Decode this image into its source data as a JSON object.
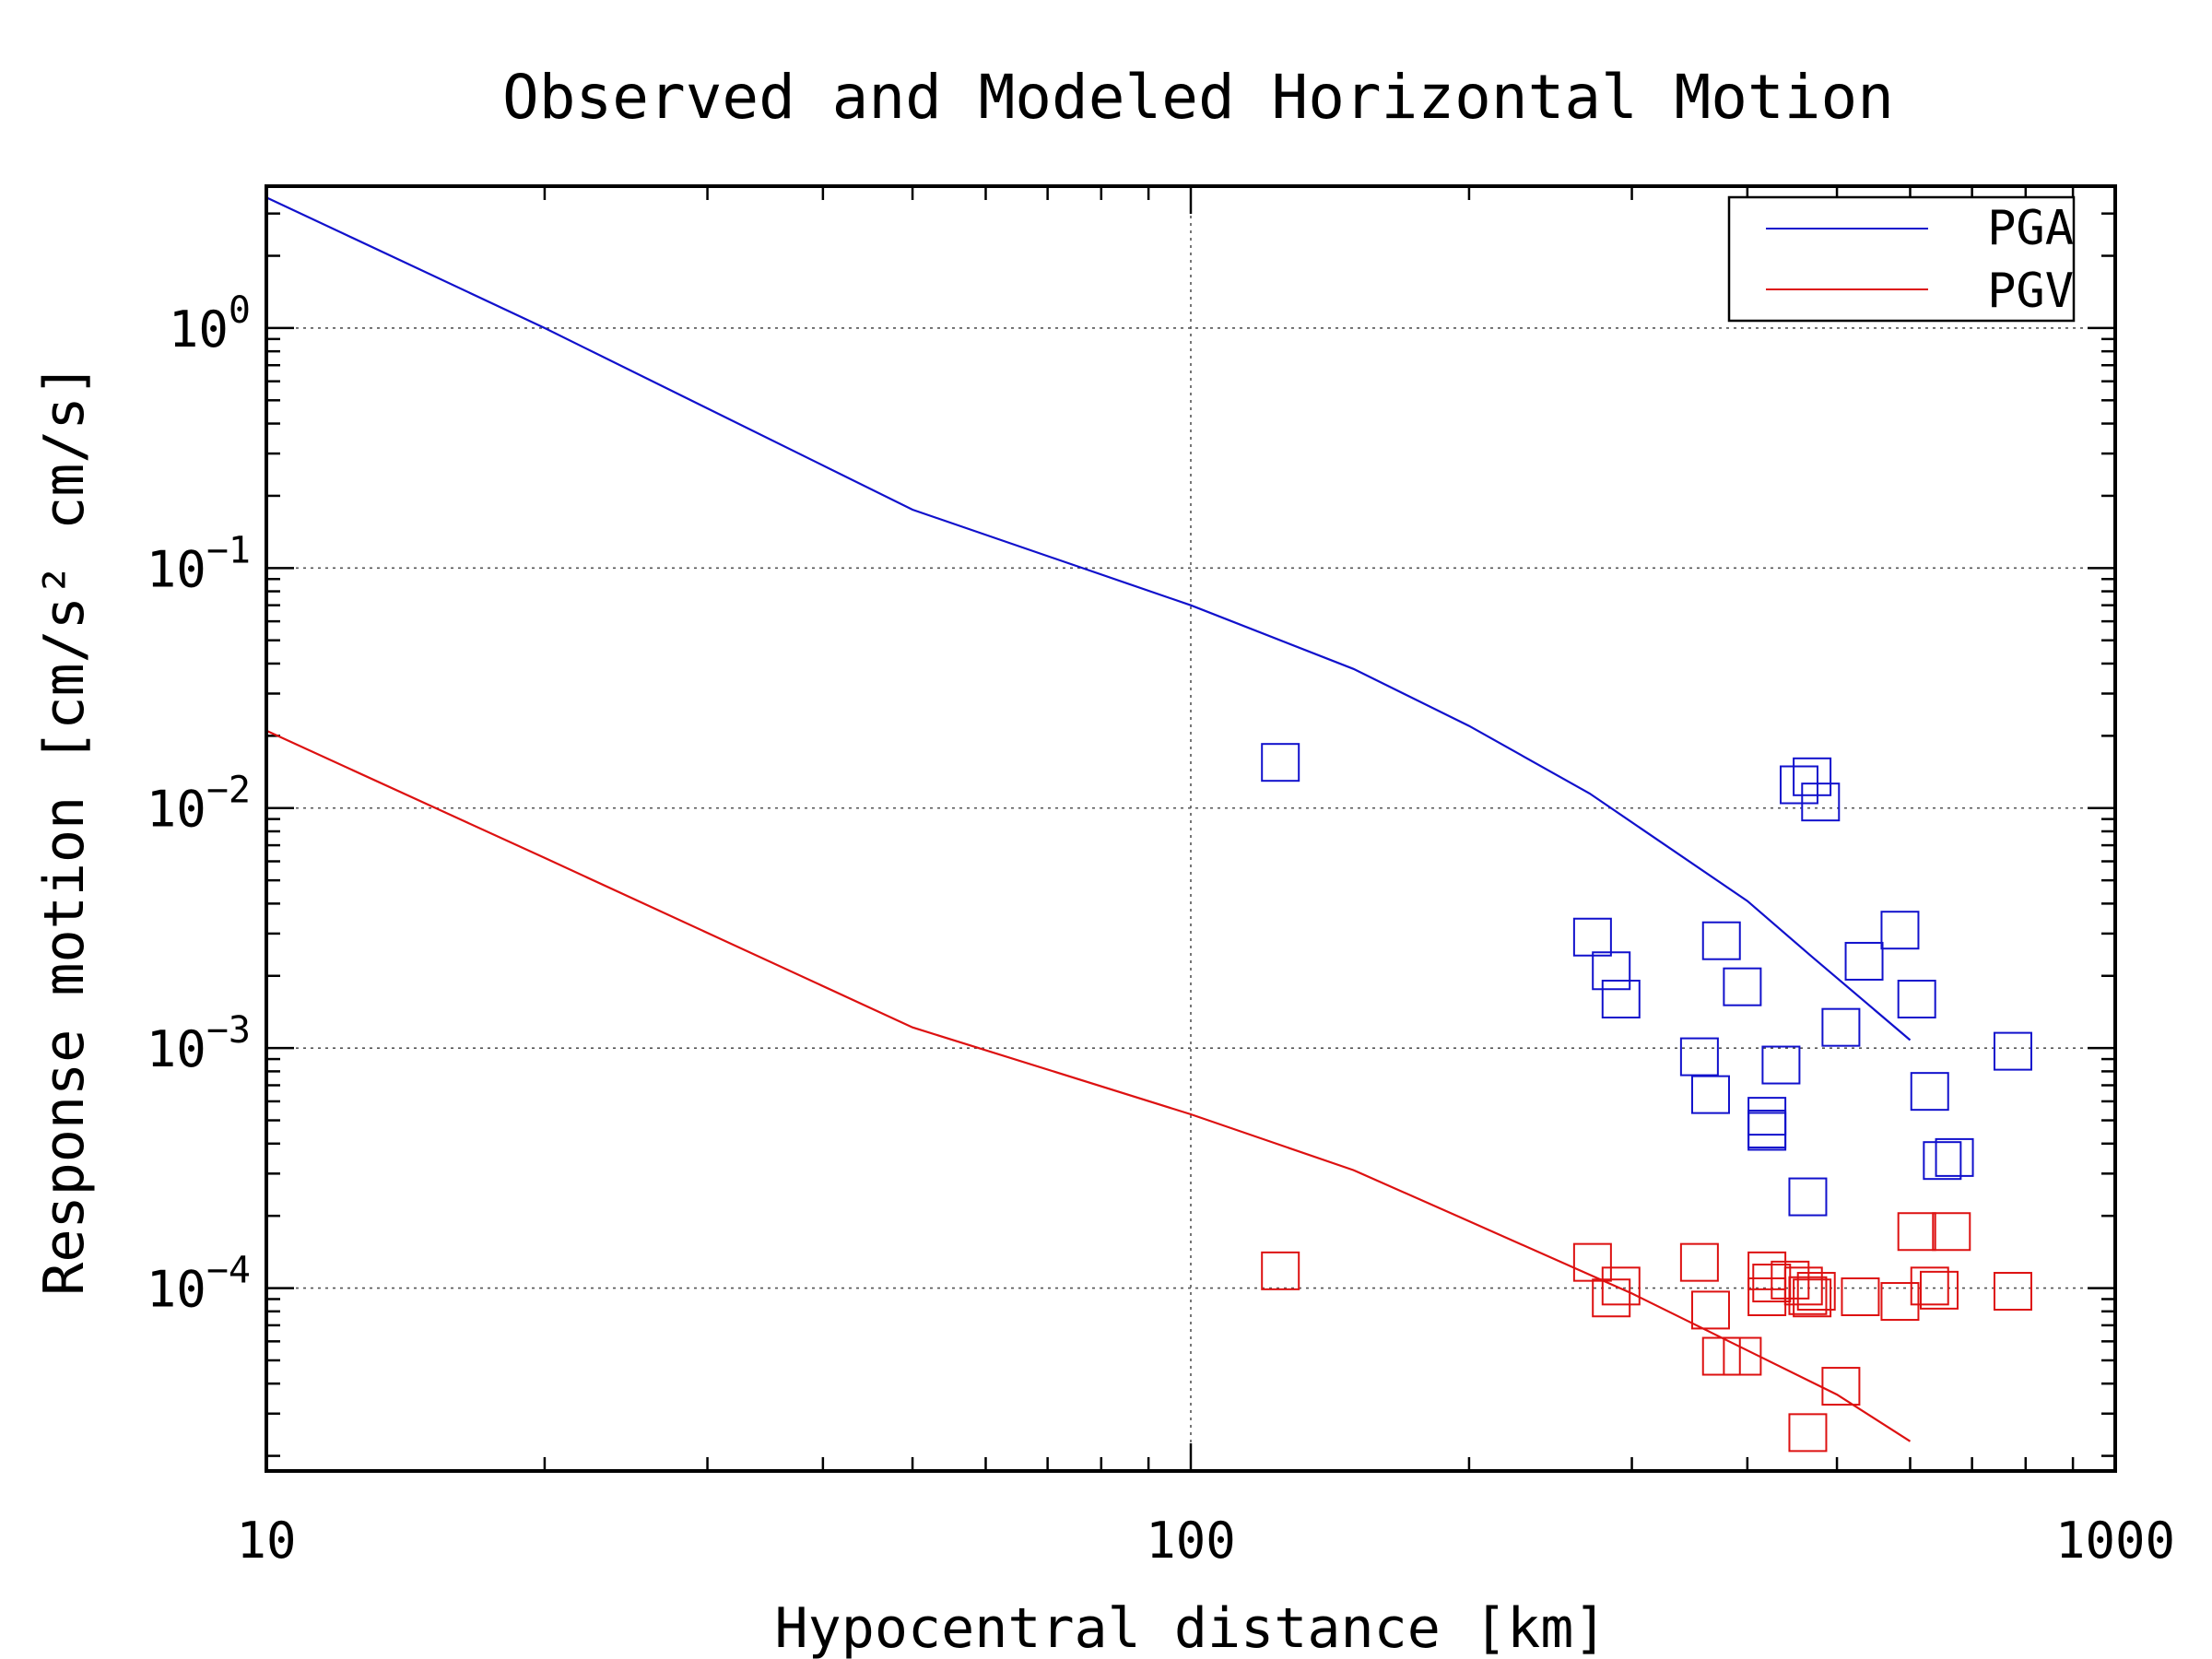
{
  "chart_data": {
    "type": "scatter",
    "title": "Observed and Modeled Horizontal Motion",
    "xlabel": "Hypocentral distance [km]",
    "ylabel": "Response motion [cm/s² cm/s]",
    "x_scale": "log",
    "y_scale": "log",
    "xlim": [
      10,
      1000
    ],
    "ylim": [
      1.73e-05,
      3.9
    ],
    "x_ticks": [
      {
        "value": 10,
        "label": "10"
      },
      {
        "value": 100,
        "label": "100"
      },
      {
        "value": 1000,
        "label": "1000"
      }
    ],
    "y_ticks": [
      {
        "value": 1,
        "base": "10",
        "exp": "0"
      },
      {
        "value": 0.1,
        "base": "10",
        "exp": "−1"
      },
      {
        "value": 0.01,
        "base": "10",
        "exp": "−2"
      },
      {
        "value": 0.001,
        "base": "10",
        "exp": "−3"
      },
      {
        "value": 0.0001,
        "base": "10",
        "exp": "−4"
      }
    ],
    "grid": true,
    "legend_position": "top-right",
    "colors": {
      "pga": "#1111cc",
      "pgv": "#dd1111"
    },
    "lines": [
      {
        "name": "PGA",
        "color": "#1111cc",
        "points": [
          [
            10,
            3.5
          ],
          [
            20,
            1.0
          ],
          [
            50,
            0.175
          ],
          [
            100,
            0.07
          ],
          [
            150,
            0.038
          ],
          [
            200,
            0.022
          ],
          [
            270,
            0.0115
          ],
          [
            400,
            0.0041
          ],
          [
            470,
            0.0024
          ],
          [
            600,
            0.00108
          ]
        ]
      },
      {
        "name": "PGV",
        "color": "#dd1111",
        "points": [
          [
            10,
            0.021
          ],
          [
            20,
            0.0062
          ],
          [
            50,
            0.00122
          ],
          [
            100,
            0.00053
          ],
          [
            150,
            0.00031
          ],
          [
            200,
            0.00019
          ],
          [
            300,
            9.5e-05
          ],
          [
            400,
            5.5e-05
          ],
          [
            500,
            3.6e-05
          ],
          [
            600,
            2.3e-05
          ]
        ]
      }
    ],
    "scatter": [
      {
        "color": "#1111cc",
        "points": [
          [
            125,
            0.0155
          ],
          [
            455,
            0.0125
          ],
          [
            470,
            0.0135
          ],
          [
            480,
            0.0106
          ],
          [
            272,
            0.0029
          ],
          [
            285,
            0.0021
          ],
          [
            292,
            0.0016
          ],
          [
            375,
            0.0028
          ],
          [
            395,
            0.0018
          ],
          [
            585,
            0.0031
          ],
          [
            535,
            0.0023
          ],
          [
            610,
            0.0016
          ],
          [
            505,
            0.00122
          ],
          [
            775,
            0.00097
          ],
          [
            355,
            0.00092
          ],
          [
            365,
            0.00064
          ],
          [
            435,
            0.00085
          ],
          [
            630,
            0.00066
          ],
          [
            420,
            0.00052
          ],
          [
            420,
            0.00046
          ],
          [
            420,
            0.00045
          ],
          [
            650,
            0.00034
          ],
          [
            670,
            0.00035
          ],
          [
            465,
            0.00024
          ]
        ]
      },
      {
        "color": "#dd1111",
        "points": [
          [
            125,
            0.000118
          ],
          [
            272,
            0.000128
          ],
          [
            292,
            0.000102
          ],
          [
            285,
            9.1e-05
          ],
          [
            355,
            0.000128
          ],
          [
            365,
            8.1e-05
          ],
          [
            375,
            5.2e-05
          ],
          [
            395,
            5.2e-05
          ],
          [
            420,
            0.000118
          ],
          [
            425,
            0.000105
          ],
          [
            420,
            9.2e-05
          ],
          [
            445,
            0.000108
          ],
          [
            460,
            0.000102
          ],
          [
            475,
            9.7e-05
          ],
          [
            465,
            9.3e-05
          ],
          [
            470,
            9.1e-05
          ],
          [
            530,
            9.2e-05
          ],
          [
            585,
            8.8e-05
          ],
          [
            610,
            0.000172
          ],
          [
            665,
            0.000172
          ],
          [
            630,
            0.000102
          ],
          [
            645,
            9.8e-05
          ],
          [
            775,
            9.7e-05
          ],
          [
            505,
            3.9e-05
          ],
          [
            465,
            2.5e-05
          ]
        ]
      }
    ]
  }
}
